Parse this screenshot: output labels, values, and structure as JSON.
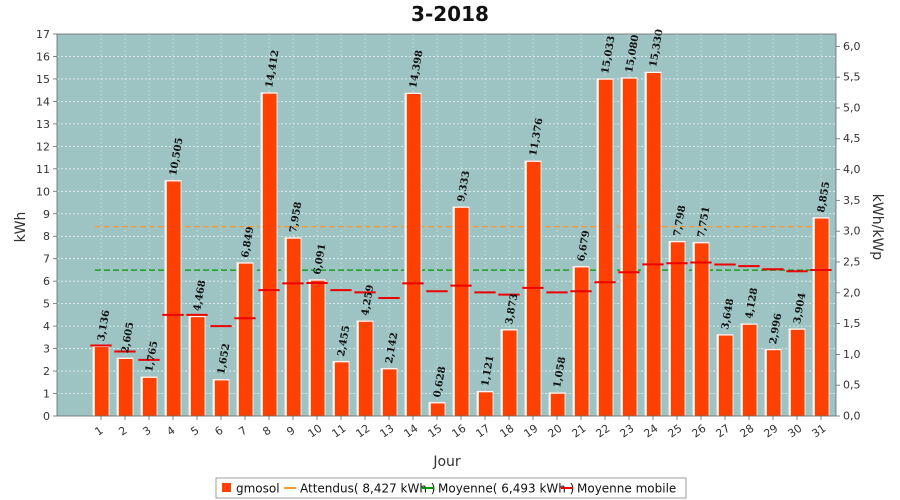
{
  "chart_data": {
    "type": "bar",
    "title": "3-2018",
    "xlabel": "Jour",
    "ylabel": "kWh",
    "y2label": "kWh/kWp",
    "ylim": [
      0,
      17
    ],
    "y2lim": [
      0,
      6.2
    ],
    "categories": [
      "1",
      "2",
      "3",
      "4",
      "5",
      "6",
      "7",
      "8",
      "9",
      "10",
      "11",
      "12",
      "13",
      "14",
      "15",
      "16",
      "17",
      "18",
      "19",
      "20",
      "21",
      "22",
      "23",
      "24",
      "25",
      "26",
      "27",
      "28",
      "29",
      "30",
      "31"
    ],
    "series": [
      {
        "name": "gmosol",
        "color": "#ff4000",
        "values": [
          3.136,
          2.605,
          1.765,
          10.505,
          4.468,
          1.652,
          6.849,
          14.412,
          7.958,
          6.091,
          2.455,
          4.259,
          2.142,
          14.398,
          0.628,
          9.333,
          1.121,
          3.873,
          11.376,
          1.058,
          6.679,
          15.033,
          15.08,
          15.33,
          7.798,
          7.751,
          3.648,
          4.128,
          2.996,
          3.904,
          8.855
        ],
        "labels": [
          "3,136",
          "2,605",
          "1,765",
          "10,505",
          "4,468",
          "1,652",
          "6,849",
          "14,412",
          "7,958",
          "6,091",
          "2,455",
          "4,259",
          "2,142",
          "14,398",
          "0,628",
          "9,333",
          "1,121",
          "3,873",
          "11,376",
          "1,058",
          "6,679",
          "15,033",
          "15,080",
          "15,330",
          "7,798",
          "7,751",
          "3,648",
          "4,128",
          "2,996",
          "3,904",
          "8,855"
        ]
      },
      {
        "name": "Moyenne mobile",
        "color": "#ee0000",
        "values": [
          3.136,
          2.87,
          2.5,
          4.5,
          4.5,
          4.0,
          4.35,
          5.6,
          5.9,
          5.92,
          5.6,
          5.5,
          5.25,
          5.9,
          5.55,
          5.8,
          5.5,
          5.4,
          5.7,
          5.5,
          5.55,
          5.95,
          6.4,
          6.75,
          6.8,
          6.83,
          6.74,
          6.67,
          6.53,
          6.44,
          6.5
        ]
      }
    ],
    "reference_lines": [
      {
        "name": "Attendus( 8,427 kWh )",
        "value": 8.427,
        "color": "#ff9933"
      },
      {
        "name": "Moyenne( 6,493 kWh )",
        "value": 6.493,
        "color": "#009900"
      }
    ],
    "y_ticks": [
      "0",
      "1",
      "2",
      "3",
      "4",
      "5",
      "6",
      "7",
      "8",
      "9",
      "10",
      "11",
      "12",
      "13",
      "14",
      "15",
      "16",
      "17"
    ],
    "y2_ticks": [
      "0,0",
      "0,5",
      "1,0",
      "1,5",
      "2,0",
      "2,5",
      "3,0",
      "3,5",
      "4,0",
      "4,5",
      "5,0",
      "5,5",
      "6,0"
    ],
    "legend_placement": "bottom",
    "plot_background": "#9dc3c3",
    "grid": true
  },
  "legend": {
    "items": [
      {
        "label": "gmosol",
        "kind": "box",
        "color": "#ff4000"
      },
      {
        "label": "Attendus( 8,427 kWh )",
        "kind": "line",
        "color": "#ff9933"
      },
      {
        "label": "Moyenne( 6,493 kWh )",
        "kind": "line",
        "color": "#009900"
      },
      {
        "label": "Moyenne mobile",
        "kind": "line",
        "color": "#ee0000"
      }
    ]
  }
}
